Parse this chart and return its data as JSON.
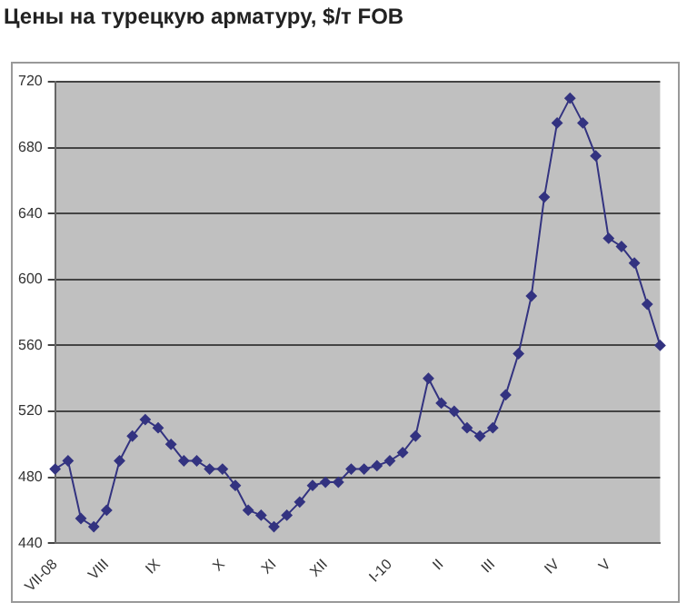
{
  "chart_data": {
    "type": "line",
    "title": "Цены на турецкую арматуру, $/т FOB",
    "categories": [
      "VII-08",
      null,
      null,
      null,
      "VIII",
      null,
      null,
      null,
      "IX",
      null,
      null,
      null,
      null,
      "X",
      null,
      null,
      null,
      "XI",
      null,
      null,
      null,
      "XII",
      null,
      null,
      null,
      null,
      "I-10",
      null,
      null,
      null,
      "II",
      null,
      null,
      null,
      "III",
      null,
      null,
      null,
      null,
      "IV",
      null,
      null,
      null,
      "V",
      null,
      null,
      null,
      null
    ],
    "series": [
      {
        "color": "#333380",
        "values": [
          485,
          490,
          455,
          450,
          460,
          490,
          505,
          515,
          510,
          500,
          490,
          490,
          485,
          485,
          475,
          460,
          457,
          450,
          457,
          465,
          475,
          477,
          477,
          485,
          485,
          487,
          490,
          495,
          505,
          540,
          525,
          520,
          510,
          505,
          510,
          530,
          555,
          590,
          650,
          695,
          710,
          695,
          675,
          625,
          620,
          610,
          585,
          560
        ]
      }
    ],
    "ylim": [
      440,
      720
    ],
    "yticks": [
      440,
      480,
      520,
      560,
      600,
      640,
      680,
      720
    ],
    "grid": "y",
    "legend": false,
    "marker": "diamond",
    "line_style": "solid"
  }
}
